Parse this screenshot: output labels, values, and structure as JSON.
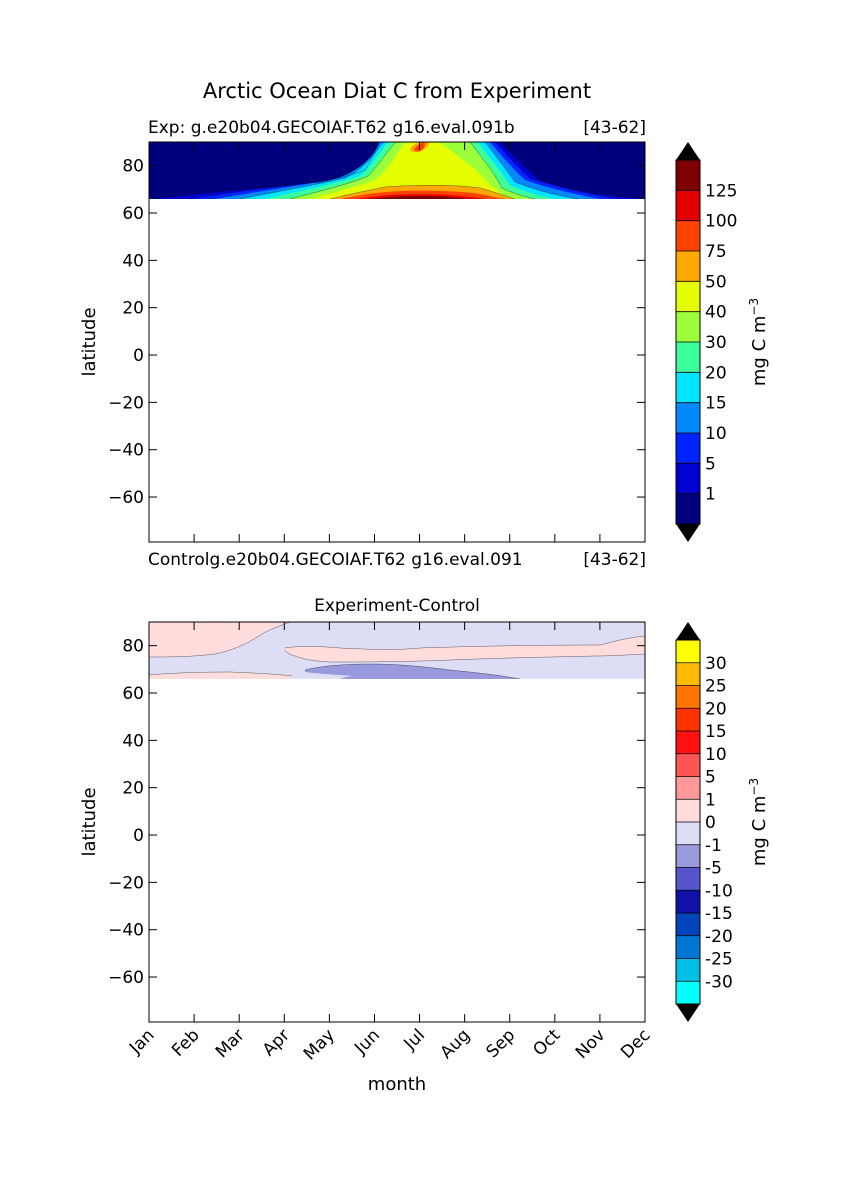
{
  "figure": {
    "title": "Arctic Ocean Diat C from Experiment"
  },
  "chart_data": [
    {
      "type": "heatmap",
      "title_left": "Exp:    g.e20b04.GECOIAF.T62 g16.eval.091b",
      "title_right": "[43-62]",
      "xlabel": "",
      "ylabel": "latitude",
      "xlim": [
        0,
        11
      ],
      "ylim": [
        -79,
        90
      ],
      "yticks": [
        "80",
        "60",
        "40",
        "20",
        "0",
        "−20",
        "−40",
        "−60"
      ],
      "ytick_values": [
        80,
        60,
        40,
        20,
        0,
        -20,
        -40,
        -60
      ],
      "data_lat_range": [
        66,
        90
      ],
      "colorbar": {
        "label": "mg C m",
        "label_sup": "−3",
        "levels": [
          "1",
          "5",
          "10",
          "15",
          "20",
          "30",
          "40",
          "50",
          "75",
          "100",
          "125"
        ],
        "colors": [
          "#00007f",
          "#0000d4",
          "#0022ff",
          "#0088ff",
          "#00e5ff",
          "#3cff9c",
          "#9cff3c",
          "#e5ff00",
          "#ffa800",
          "#ff4200",
          "#e50000",
          "#7f0000"
        ],
        "extend": "both",
        "min_color": "#000000",
        "max_color": "#000000"
      }
    },
    {
      "type": "heatmap",
      "title_left": "Controlg.e20b04.GECOIAF.T62 g16.eval.091",
      "title_right": "[43-62]",
      "title": "Experiment-Control",
      "xlabel": "month",
      "ylabel": "latitude",
      "xticks": [
        "Jan",
        "Feb",
        "Mar",
        "Apr",
        "May",
        "Jun",
        "Jul",
        "Aug",
        "Sep",
        "Oct",
        "Nov",
        "Dec"
      ],
      "xlim": [
        0,
        11
      ],
      "ylim": [
        -79,
        90
      ],
      "yticks": [
        "80",
        "60",
        "40",
        "20",
        "0",
        "−20",
        "−40",
        "−60"
      ],
      "ytick_values": [
        80,
        60,
        40,
        20,
        0,
        -20,
        -40,
        -60
      ],
      "data_lat_range": [
        66,
        90
      ],
      "colorbar": {
        "label": "mg C m",
        "label_sup": "−3",
        "levels": [
          "-30",
          "-25",
          "-20",
          "-15",
          "-10",
          "-5",
          "-1",
          "0",
          "1",
          "5",
          "10",
          "15",
          "20",
          "25",
          "30"
        ],
        "colors": [
          "#00ffff",
          "#00bfe6",
          "#0077d4",
          "#0044bb",
          "#1111aa",
          "#5555cc",
          "#9999dd",
          "#ddddf5",
          "#ffdddd",
          "#ff9999",
          "#ff5555",
          "#ff1111",
          "#ff3300",
          "#ff7700",
          "#ffbb00",
          "#ffff00"
        ],
        "extend": "both",
        "min_color": "#000000",
        "max_color": "#000000"
      }
    }
  ]
}
